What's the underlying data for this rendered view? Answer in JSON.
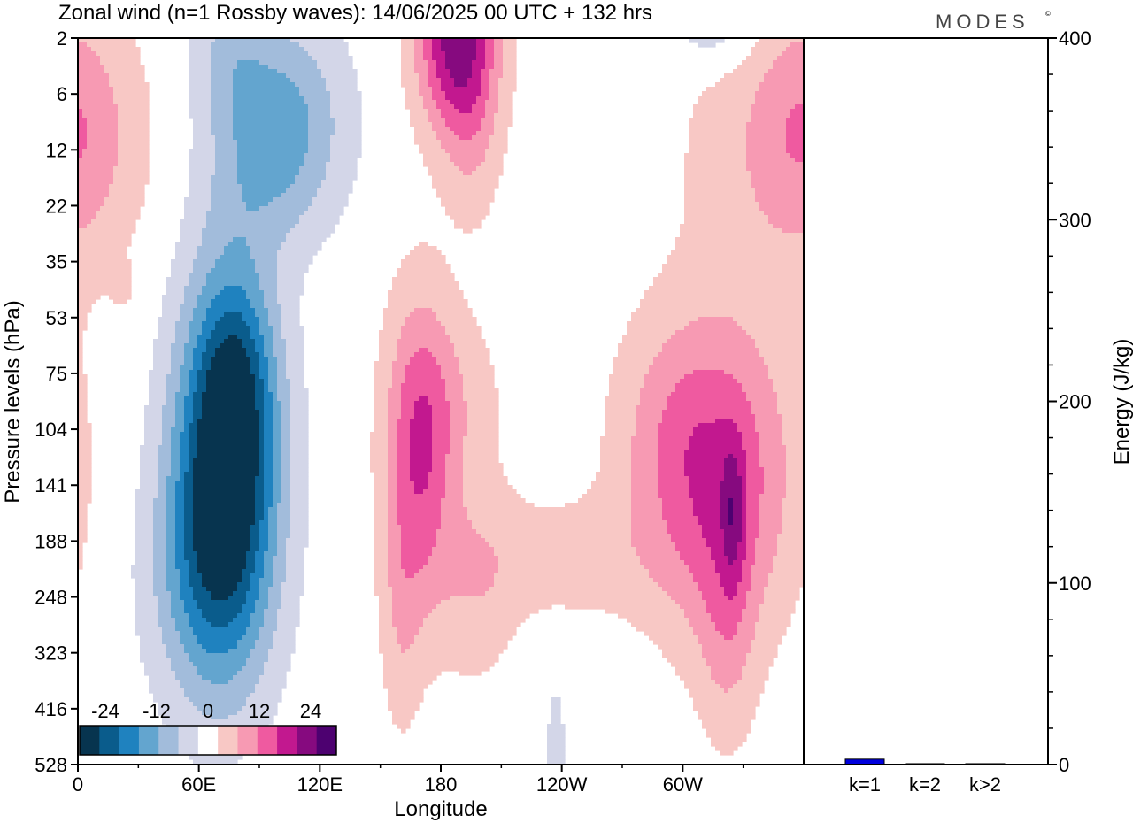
{
  "title": "Zonal wind (n=1 Rossby waves):  14/06/2025  00 UTC  + 132 hrs",
  "brand": "MODES",
  "brand_mark": "©",
  "colors": {
    "neg": [
      "#07344f",
      "#0a5c8c",
      "#1f82bf",
      "#63a5cf",
      "#a2bcdb",
      "#d3d6e8"
    ],
    "zero": "#ffffff",
    "pos": [
      "#f8c8c5",
      "#f79ab3",
      "#ef5aa0",
      "#c2188f",
      "#860a7f",
      "#4d0170"
    ],
    "bar": "#0000dd"
  },
  "chart_data": [
    {
      "type": "heatmap",
      "title": "Zonal wind (n=1 Rossby waves):  14/06/2025  00 UTC  + 132 hrs",
      "xlabel": "Longitude",
      "ylabel": "Pressure levels (hPa)",
      "x_ticks": [
        {
          "lon": 0,
          "label": "0"
        },
        {
          "lon": 60,
          "label": "60E"
        },
        {
          "lon": 120,
          "label": "120E"
        },
        {
          "lon": 180,
          "label": "180"
        },
        {
          "lon": 240,
          "label": "120W"
        },
        {
          "lon": 300,
          "label": "60W"
        }
      ],
      "xlim": [
        0,
        360
      ],
      "y_levels": [
        "2",
        "6",
        "12",
        "22",
        "35",
        "53",
        "75",
        "104",
        "141",
        "188",
        "248",
        "323",
        "416",
        "528"
      ],
      "colorbar": {
        "labels": [
          "-24",
          "-12",
          "0",
          "12",
          "24"
        ],
        "label_values": [
          -24,
          -12,
          0,
          12,
          24
        ],
        "range": [
          -30,
          30
        ],
        "step": 4.3
      },
      "features": [
        {
          "name": "negative-lower-60E",
          "lon": 74,
          "level_index": 7.6,
          "min_value": -30
        },
        {
          "name": "negative-upper-60E-120E",
          "lon": 105,
          "level_index": 1.2,
          "min_value": -13
        },
        {
          "name": "positive-upper-180",
          "lon": 187,
          "level_index": 0.1,
          "min_value_pos": 21
        },
        {
          "name": "positive-lower-60W",
          "lon": 325,
          "level_index": 8.2,
          "max_value": 17
        },
        {
          "name": "positive-lower-180",
          "lon": 170,
          "level_index": 7.8,
          "max_value": 13
        },
        {
          "name": "negative-small-120W",
          "lon": 237,
          "level_index": 12.8,
          "min_value": -5
        }
      ]
    },
    {
      "type": "bar",
      "categories": [
        "k=1",
        "k=2",
        "k>2"
      ],
      "values": [
        3,
        0.5,
        0.5
      ],
      "ylabel": "Energy (J/kg)",
      "ylim": [
        0,
        400
      ],
      "y_ticks": [
        0,
        100,
        200,
        300,
        400
      ]
    }
  ]
}
